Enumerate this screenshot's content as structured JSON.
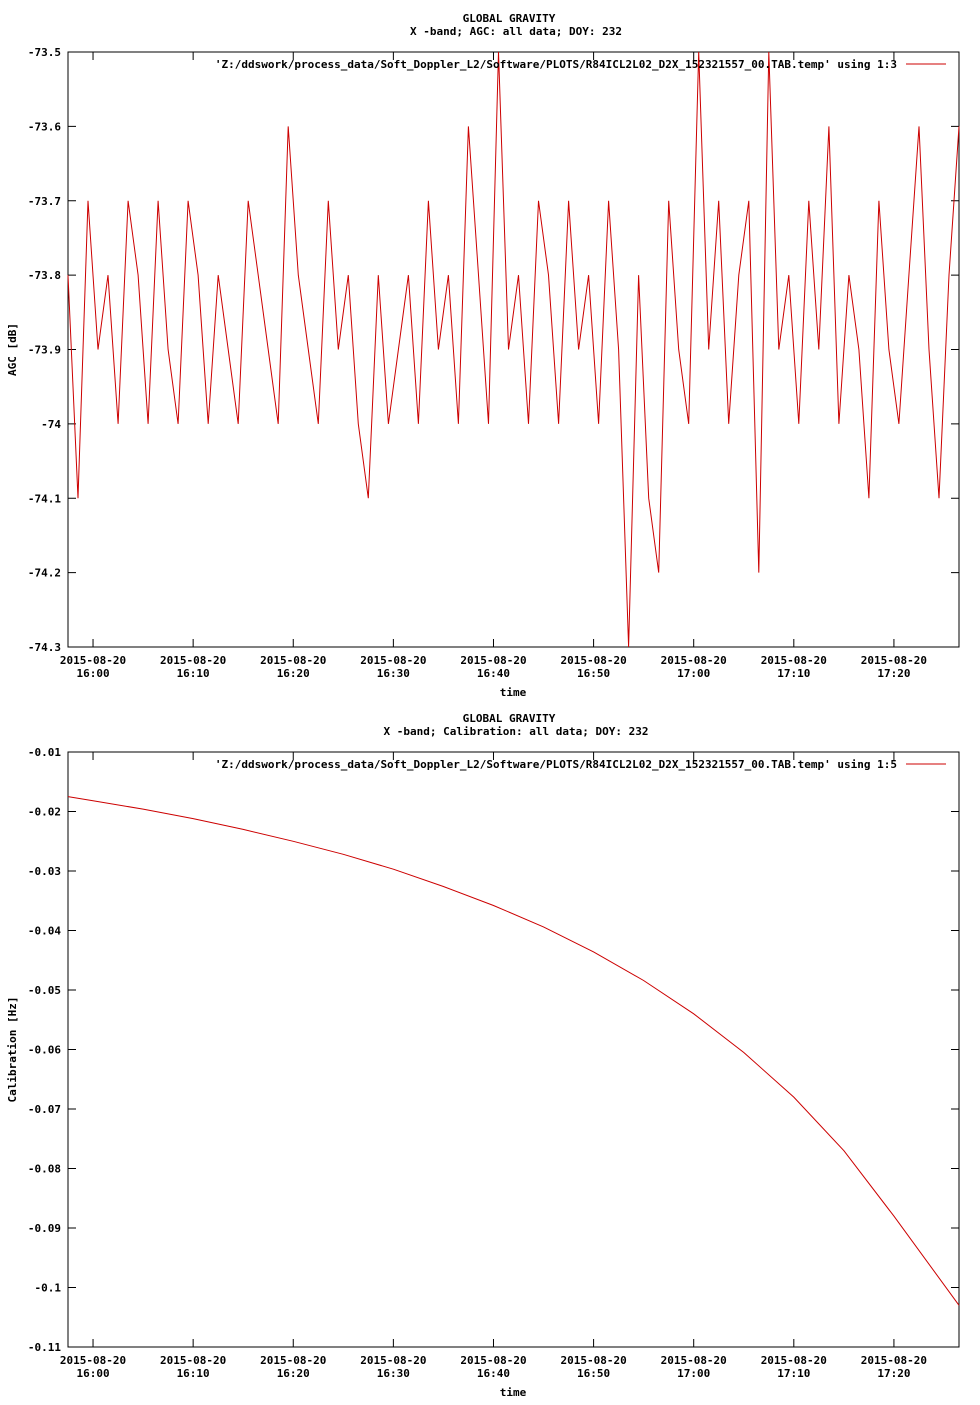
{
  "chart_data": [
    {
      "type": "line",
      "title": "GLOBAL GRAVITY",
      "subtitle": "X -band; AGC: all data; DOY: 232",
      "xlabel": "time",
      "ylabel": "AGC [dB]",
      "ylim": [
        -74.3,
        -73.5
      ],
      "y_ticks": [
        "-73.5",
        "-73.6",
        "-73.7",
        "-73.8",
        "-73.9",
        "-74",
        "-74.1",
        "-74.2",
        "-74.3"
      ],
      "x_tick_dates": [
        "2015-08-20",
        "2015-08-20",
        "2015-08-20",
        "2015-08-20",
        "2015-08-20",
        "2015-08-20",
        "2015-08-20",
        "2015-08-20",
        "2015-08-20"
      ],
      "x_tick_times": [
        "16:00",
        "16:10",
        "16:20",
        "16:30",
        "16:40",
        "16:50",
        "17:00",
        "17:10",
        "17:20"
      ],
      "xlim": [
        "15:57:30",
        "17:26:30"
      ],
      "legend_position": "top-right",
      "series": [
        {
          "name": "'Z:/ddswork/process_data/Soft_Doppler_L2/Software/PLOTS/R84ICL2L02_D2X_152321557_00.TAB.temp' using 1:3",
          "color": "#cc0000",
          "x": [
            "15:57:30",
            "15:58:30",
            "15:59:30",
            "16:00:30",
            "16:01:30",
            "16:02:30",
            "16:03:30",
            "16:04:30",
            "16:05:30",
            "16:06:30",
            "16:07:30",
            "16:08:30",
            "16:09:30",
            "16:10:30",
            "16:11:30",
            "16:12:30",
            "16:13:30",
            "16:14:30",
            "16:15:30",
            "16:16:30",
            "16:17:30",
            "16:18:30",
            "16:19:30",
            "16:20:30",
            "16:21:30",
            "16:22:30",
            "16:23:30",
            "16:24:30",
            "16:25:30",
            "16:26:30",
            "16:27:30",
            "16:28:30",
            "16:29:30",
            "16:30:30",
            "16:31:30",
            "16:32:30",
            "16:33:30",
            "16:34:30",
            "16:35:30",
            "16:36:30",
            "16:37:30",
            "16:38:30",
            "16:39:30",
            "16:40:30",
            "16:41:30",
            "16:42:30",
            "16:43:30",
            "16:44:30",
            "16:45:30",
            "16:46:30",
            "16:47:30",
            "16:48:30",
            "16:49:30",
            "16:50:30",
            "16:51:30",
            "16:52:30",
            "16:53:30",
            "16:54:30",
            "16:55:30",
            "16:56:30",
            "16:57:30",
            "16:58:30",
            "16:59:30",
            "17:00:30",
            "17:01:30",
            "17:02:30",
            "17:03:30",
            "17:04:30",
            "17:05:30",
            "17:06:30",
            "17:07:30",
            "17:08:30",
            "17:09:30",
            "17:10:30",
            "17:11:30",
            "17:12:30",
            "17:13:30",
            "17:14:30",
            "17:15:30",
            "17:16:30",
            "17:17:30",
            "17:18:30",
            "17:19:30",
            "17:20:30",
            "17:21:30",
            "17:22:30",
            "17:23:30",
            "17:24:30",
            "17:25:30",
            "17:26:30"
          ],
          "values": [
            -73.8,
            -74.1,
            -73.7,
            -73.9,
            -73.8,
            -74.0,
            -73.7,
            -73.8,
            -74.0,
            -73.7,
            -73.9,
            -74.0,
            -73.7,
            -73.8,
            -74.0,
            -73.8,
            -73.9,
            -74.0,
            -73.7,
            -73.8,
            -73.9,
            -74.0,
            -73.6,
            -73.8,
            -73.9,
            -74.0,
            -73.7,
            -73.9,
            -73.8,
            -74.0,
            -74.1,
            -73.8,
            -74.0,
            -73.9,
            -73.8,
            -74.0,
            -73.7,
            -73.9,
            -73.8,
            -74.0,
            -73.6,
            -73.8,
            -74.0,
            -73.5,
            -73.9,
            -73.8,
            -74.0,
            -73.7,
            -73.8,
            -74.0,
            -73.7,
            -73.9,
            -73.8,
            -74.0,
            -73.7,
            -73.9,
            -74.3,
            -73.8,
            -74.1,
            -74.2,
            -73.7,
            -73.9,
            -74.0,
            -73.5,
            -73.9,
            -73.7,
            -74.0,
            -73.8,
            -73.7,
            -74.2,
            -73.5,
            -73.9,
            -73.8,
            -74.0,
            -73.7,
            -73.9,
            -73.6,
            -74.0,
            -73.8,
            -73.9,
            -74.1,
            -73.7,
            -73.9,
            -74.0,
            -73.8,
            -73.6,
            -73.9,
            -74.1,
            -73.8,
            -73.6
          ]
        }
      ]
    },
    {
      "type": "line",
      "title": "GLOBAL GRAVITY",
      "subtitle": "X -band; Calibration: all data; DOY: 232",
      "xlabel": "time",
      "ylabel": "Calibration [Hz]",
      "ylim": [
        -0.11,
        -0.01
      ],
      "y_ticks": [
        "-0.01",
        "-0.02",
        "-0.03",
        "-0.04",
        "-0.05",
        "-0.06",
        "-0.07",
        "-0.08",
        "-0.09",
        "-0.1",
        "-0.11"
      ],
      "x_tick_dates": [
        "2015-08-20",
        "2015-08-20",
        "2015-08-20",
        "2015-08-20",
        "2015-08-20",
        "2015-08-20",
        "2015-08-20",
        "2015-08-20",
        "2015-08-20"
      ],
      "x_tick_times": [
        "16:00",
        "16:10",
        "16:20",
        "16:30",
        "16:40",
        "16:50",
        "17:00",
        "17:10",
        "17:20"
      ],
      "xlim": [
        "15:57:30",
        "17:26:30"
      ],
      "legend_position": "top-right",
      "series": [
        {
          "name": "'Z:/ddswork/process_data/Soft_Doppler_L2/Software/PLOTS/R84ICL2L02_D2X_152321557_00.TAB.temp' using 1:5",
          "color": "#cc0000",
          "x": [
            "15:57:30",
            "16:00:00",
            "16:05:00",
            "16:10:00",
            "16:15:00",
            "16:20:00",
            "16:25:00",
            "16:30:00",
            "16:35:00",
            "16:40:00",
            "16:45:00",
            "16:50:00",
            "16:55:00",
            "17:00:00",
            "17:05:00",
            "17:10:00",
            "17:15:00",
            "17:20:00",
            "17:26:30"
          ],
          "values": [
            -0.0175,
            -0.0182,
            -0.0196,
            -0.0212,
            -0.023,
            -0.025,
            -0.0272,
            -0.0297,
            -0.0326,
            -0.0358,
            -0.0394,
            -0.0436,
            -0.0484,
            -0.054,
            -0.0605,
            -0.068,
            -0.077,
            -0.088,
            -0.103
          ]
        }
      ]
    }
  ]
}
